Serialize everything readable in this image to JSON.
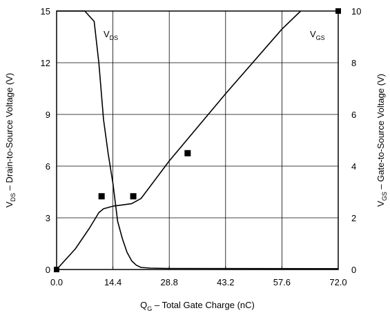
{
  "chart_data": {
    "type": "line",
    "title": "",
    "xlabel": {
      "main": "Q",
      "sub": "G",
      "rest": " – Total Gate Charge (nC)"
    },
    "ylabel_left": {
      "main": "V",
      "sub": "DS",
      "rest": " – Drain-to-Source Voltage (V)"
    },
    "ylabel_right": {
      "main": "V",
      "sub": "GS",
      "rest": " – Gate-to-Source Voltage (V)"
    },
    "xlim": [
      0,
      72
    ],
    "ylim_left": [
      0,
      15
    ],
    "ylim_right": [
      0,
      10
    ],
    "x_ticks": [
      "0.0",
      "14.4",
      "28.8",
      "43.2",
      "57.6",
      "72.0"
    ],
    "y_left_ticks": [
      "0",
      "3",
      "6",
      "9",
      "12",
      "15"
    ],
    "y_right_ticks": [
      "0",
      "2",
      "4",
      "6",
      "8",
      "10"
    ],
    "grid": true,
    "series": [
      {
        "name": "VDS",
        "label": {
          "main": "V",
          "sub": "DS"
        },
        "axis": "left",
        "x": [
          0,
          7.2,
          9.6,
          10.8,
          12,
          13.2,
          14.4,
          15.6,
          16.8,
          18.0,
          19.2,
          20.4,
          21.6,
          24,
          28.8,
          72
        ],
        "y": [
          15,
          15,
          14.4,
          12.0,
          8.7,
          6.7,
          5.0,
          2.8,
          1.8,
          1.0,
          0.5,
          0.25,
          0.12,
          0.08,
          0.06,
          0.05
        ]
      },
      {
        "name": "VGS",
        "label": {
          "main": "V",
          "sub": "GS"
        },
        "axis": "right",
        "x": [
          0,
          4.8,
          8.4,
          10.8,
          12.0,
          14.4,
          16.8,
          19.2,
          21.6,
          28.8,
          43.2,
          57.6,
          62.4
        ],
        "y": [
          0,
          0.8,
          1.6,
          2.2,
          2.35,
          2.45,
          2.5,
          2.55,
          2.75,
          4.2,
          6.8,
          9.3,
          10.0
        ]
      }
    ],
    "markers": {
      "left_axis_points": [
        {
          "x": 11.5,
          "y": 4.25
        },
        {
          "x": 19.6,
          "y": 4.25
        },
        {
          "x": 33.5,
          "y": 6.75
        }
      ],
      "corner_points": [
        {
          "x": 0,
          "y": 0
        },
        {
          "x": 72,
          "y": 15
        }
      ]
    }
  }
}
